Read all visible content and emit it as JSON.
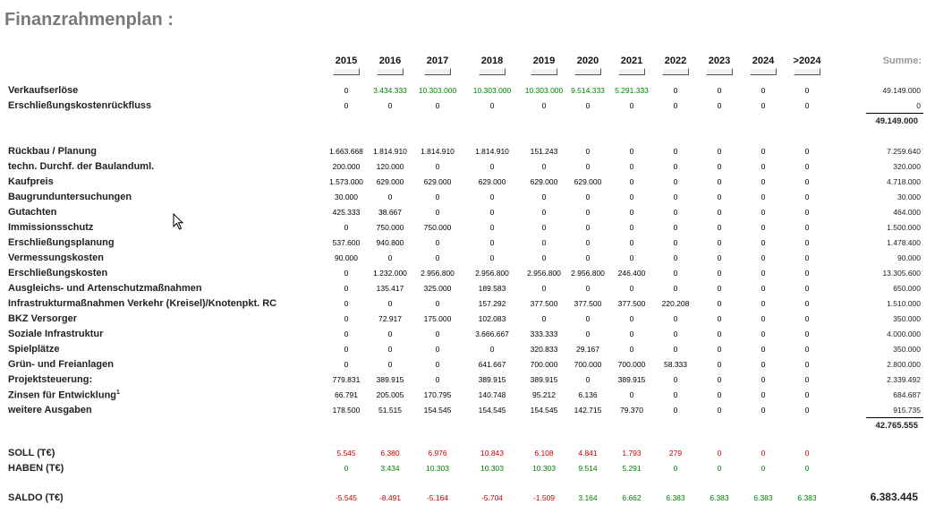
{
  "title": "Finanzrahmenplan :",
  "years": [
    "2015",
    "2016",
    "2017",
    "2018",
    "2019",
    "2020",
    "2021",
    "2022",
    "2023",
    "2024",
    ">2024"
  ],
  "sum_header": "Summe:",
  "colors": {
    "negative": "#cc0000",
    "positive": "#008000",
    "neutral": "#000000"
  },
  "income_rows": [
    {
      "label": "Verkaufserlöse",
      "values": [
        "0",
        "3.434.333",
        "10.303.000",
        "10.303.000",
        "10.303.000",
        "9.514.333",
        "5.291.333",
        "0",
        "0",
        "0",
        "0"
      ],
      "sum": "49.149.000"
    },
    {
      "label": "Erschließungskostenrückfluss",
      "values": [
        "0",
        "0",
        "0",
        "0",
        "0",
        "0",
        "0",
        "0",
        "0",
        "0",
        "0"
      ],
      "sum": "0"
    }
  ],
  "income_total": "49.149.000",
  "expense_rows": [
    {
      "label": "Rückbau / Planung",
      "values": [
        "1.663.668",
        "1.814.910",
        "1.814.910",
        "1.814.910",
        "151.243",
        "0",
        "0",
        "0",
        "0",
        "0",
        "0"
      ],
      "sum": "7.259.640"
    },
    {
      "label": "techn. Durchf. der Baulanduml.",
      "values": [
        "200.000",
        "120.000",
        "0",
        "0",
        "0",
        "0",
        "0",
        "0",
        "0",
        "0",
        "0"
      ],
      "sum": "320.000"
    },
    {
      "label": "Kaufpreis",
      "values": [
        "1.573.000",
        "629.000",
        "629.000",
        "629.000",
        "629.000",
        "629.000",
        "0",
        "0",
        "0",
        "0",
        "0"
      ],
      "sum": "4.718.000"
    },
    {
      "label": "Baugrunduntersuchungen",
      "values": [
        "30.000",
        "0",
        "0",
        "0",
        "0",
        "0",
        "0",
        "0",
        "0",
        "0",
        "0"
      ],
      "sum": "30.000"
    },
    {
      "label": "Gutachten",
      "values": [
        "425.333",
        "38.667",
        "0",
        "0",
        "0",
        "0",
        "0",
        "0",
        "0",
        "0",
        "0"
      ],
      "sum": "464.000"
    },
    {
      "label": "Immissionsschutz",
      "values": [
        "0",
        "750.000",
        "750.000",
        "0",
        "0",
        "0",
        "0",
        "0",
        "0",
        "0",
        "0"
      ],
      "sum": "1.500.000"
    },
    {
      "label": "Erschließungsplanung",
      "values": [
        "537.600",
        "940.800",
        "0",
        "0",
        "0",
        "0",
        "0",
        "0",
        "0",
        "0",
        "0"
      ],
      "sum": "1.478.400"
    },
    {
      "label": "Vermessungskosten",
      "values": [
        "90.000",
        "0",
        "0",
        "0",
        "0",
        "0",
        "0",
        "0",
        "0",
        "0",
        "0"
      ],
      "sum": "90.000"
    },
    {
      "label": "Erschließungskosten",
      "values": [
        "0",
        "1.232.000",
        "2.956.800",
        "2.956.800",
        "2.956.800",
        "2.956.800",
        "246.400",
        "0",
        "0",
        "0",
        "0"
      ],
      "sum": "13.305.600"
    },
    {
      "label": "Ausgleichs- und Artenschutzmaßnahmen",
      "values": [
        "0",
        "135.417",
        "325.000",
        "189.583",
        "0",
        "0",
        "0",
        "0",
        "0",
        "0",
        "0"
      ],
      "sum": "650.000"
    },
    {
      "label": "Infrastrukturmaßnahmen Verkehr (Kreisel)/Knotenpkt. RC",
      "values": [
        "0",
        "0",
        "0",
        "157.292",
        "377.500",
        "377.500",
        "377.500",
        "220.208",
        "0",
        "0",
        "0"
      ],
      "sum": "1.510.000"
    },
    {
      "label": "BKZ Versorger",
      "values": [
        "0",
        "72.917",
        "175.000",
        "102.083",
        "0",
        "0",
        "0",
        "0",
        "0",
        "0",
        "0"
      ],
      "sum": "350.000"
    },
    {
      "label": "Soziale Infrastruktur",
      "values": [
        "0",
        "0",
        "0",
        "3.666.667",
        "333.333",
        "0",
        "0",
        "0",
        "0",
        "0",
        "0"
      ],
      "sum": "4.000.000"
    },
    {
      "label": "Spielplätze",
      "values": [
        "0",
        "0",
        "0",
        "0",
        "320.833",
        "29.167",
        "0",
        "0",
        "0",
        "0",
        "0"
      ],
      "sum": "350.000"
    },
    {
      "label": "Grün- und Freianlagen",
      "values": [
        "0",
        "0",
        "0",
        "641.667",
        "700.000",
        "700.000",
        "700.000",
        "58.333",
        "0",
        "0",
        "0"
      ],
      "sum": "2.800.000"
    },
    {
      "label": "Projektsteuerung:",
      "values": [
        "779.831",
        "389.915",
        "0",
        "389.915",
        "389.915",
        "0",
        "389.915",
        "0",
        "0",
        "0",
        "0"
      ],
      "sum": "2.339.492"
    },
    {
      "label": "Zinsen für Entwicklung",
      "sup": "1",
      "values": [
        "66.791",
        "205.005",
        "170.795",
        "140.748",
        "95.212",
        "6.136",
        "0",
        "0",
        "0",
        "0",
        "0"
      ],
      "sum": "684.687"
    },
    {
      "label": "weitere Ausgaben",
      "values": [
        "178.500",
        "51.515",
        "154.545",
        "154.545",
        "154.545",
        "142.715",
        "79.370",
        "0",
        "0",
        "0",
        "0"
      ],
      "sum": "915.735"
    }
  ],
  "expense_total": "42.765.555",
  "soll": {
    "label": "SOLL (T€)",
    "values": [
      "5.545",
      "6.380",
      "6.976",
      "10.843",
      "6.108",
      "4.841",
      "1.793",
      "279",
      "0",
      "0",
      "0"
    ]
  },
  "haben": {
    "label": "HABEN (T€)",
    "values": [
      "0",
      "3.434",
      "10.303",
      "10.303",
      "10.303",
      "9.514",
      "5.291",
      "0",
      "0",
      "0",
      "0"
    ]
  },
  "saldo": {
    "label": "SALDO (T€)",
    "values": [
      "-5.545",
      "-8.491",
      "-5.164",
      "-5.704",
      "-1.509",
      "3.164",
      "6.662",
      "6.383",
      "6.383",
      "6.383",
      "6.383"
    ],
    "total": "6.383.445"
  }
}
